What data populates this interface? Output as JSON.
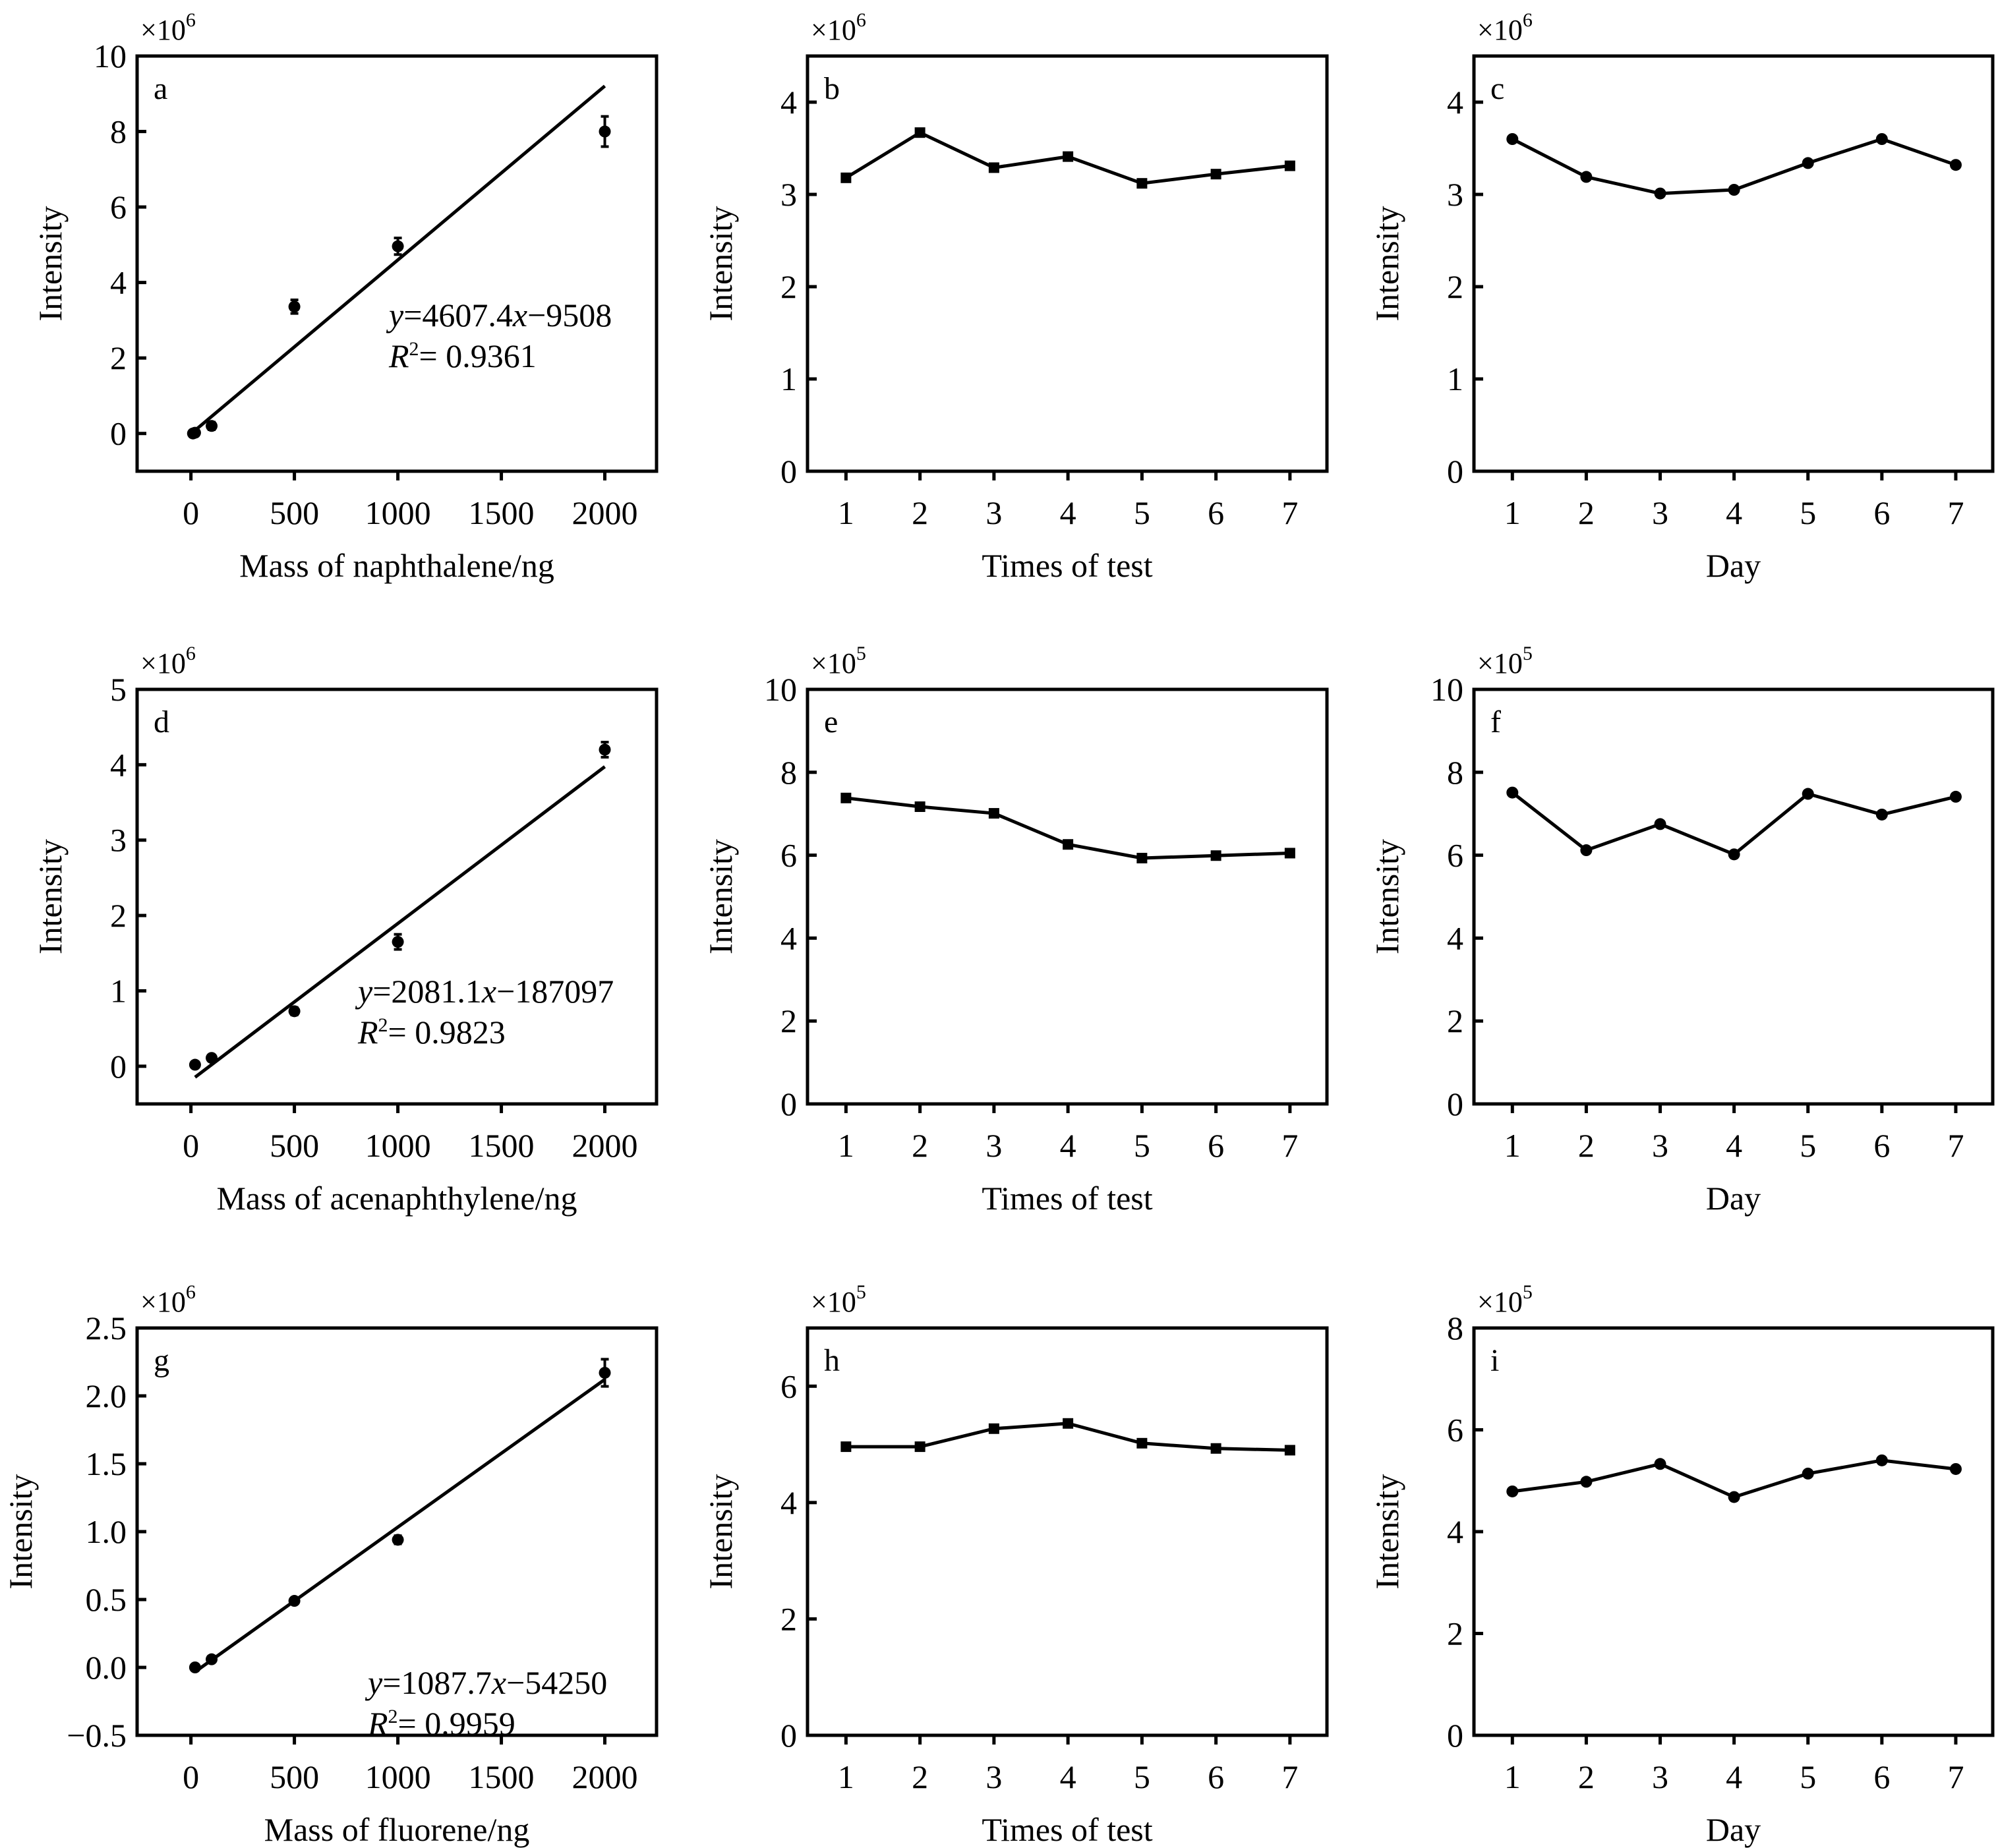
{
  "chart_data": [
    {
      "id": "a",
      "type": "scatter",
      "panel_label": "a",
      "multiplier": {
        "base": "×10",
        "exp": "6"
      },
      "xlabel": "Mass of naphthalene/ng",
      "ylabel": "Intensity",
      "xlim": [
        -260,
        2250
      ],
      "ylim": [
        -1,
        10
      ],
      "xticks": [
        0,
        500,
        1000,
        1500,
        2000
      ],
      "yticks": [
        0,
        2,
        4,
        6,
        8,
        10
      ],
      "marker": "circle",
      "points": [
        {
          "x": 10,
          "y": 0.0,
          "err": 0.05
        },
        {
          "x": 20,
          "y": 0.02,
          "err": 0.05
        },
        {
          "x": 100,
          "y": 0.2,
          "err": 0.1
        },
        {
          "x": 500,
          "y": 3.36,
          "err": 0.18
        },
        {
          "x": 1000,
          "y": 4.96,
          "err": 0.22
        },
        {
          "x": 2000,
          "y": 8.0,
          "err": 0.4
        }
      ],
      "fit": {
        "slope": 4607.4,
        "intercept": -9508,
        "x_range": [
          20,
          2000
        ],
        "scale": 1000000
      },
      "equation": {
        "y_part": "y",
        "mid": "=4607.4",
        "x_part": "x",
        "rest": "−9508",
        "r2_label": "R",
        "r2_sup": "2",
        "r2_value": "= 0.9361"
      }
    },
    {
      "id": "b",
      "type": "line",
      "panel_label": "b",
      "multiplier": {
        "base": "×10",
        "exp": "6"
      },
      "xlabel": "Times of test",
      "ylabel": "Intensity",
      "xlim": [
        0.48,
        7.5
      ],
      "ylim": [
        0,
        4.5
      ],
      "xticks": [
        1,
        2,
        3,
        4,
        5,
        6,
        7
      ],
      "yticks": [
        0,
        1,
        2,
        3,
        4
      ],
      "marker": "square",
      "x": [
        1,
        2,
        3,
        4,
        5,
        6,
        7
      ],
      "values": [
        3.18,
        3.67,
        3.29,
        3.41,
        3.12,
        3.22,
        3.31
      ]
    },
    {
      "id": "c",
      "type": "line",
      "panel_label": "c",
      "multiplier": {
        "base": "×10",
        "exp": "6"
      },
      "xlabel": "Day",
      "ylabel": "Intensity",
      "xlim": [
        0.48,
        7.5
      ],
      "ylim": [
        0,
        4.5
      ],
      "xticks": [
        1,
        2,
        3,
        4,
        5,
        6,
        7
      ],
      "yticks": [
        0,
        1,
        2,
        3,
        4
      ],
      "marker": "circle",
      "x": [
        1,
        2,
        3,
        4,
        5,
        6,
        7
      ],
      "values": [
        3.6,
        3.19,
        3.01,
        3.05,
        3.34,
        3.6,
        3.32
      ]
    },
    {
      "id": "d",
      "type": "scatter",
      "panel_label": "d",
      "multiplier": {
        "base": "×10",
        "exp": "6"
      },
      "xlabel": "Mass of acenaphthylene/ng",
      "ylabel": "Intensity",
      "xlim": [
        -260,
        2250
      ],
      "ylim": [
        -0.5,
        5
      ],
      "xticks": [
        0,
        500,
        1000,
        1500,
        2000
      ],
      "yticks": [
        0,
        1,
        2,
        3,
        4,
        5
      ],
      "marker": "circle",
      "points": [
        {
          "x": 20,
          "y": 0.02,
          "err": 0.04
        },
        {
          "x": 100,
          "y": 0.11,
          "err": 0.04
        },
        {
          "x": 500,
          "y": 0.73,
          "err": 0.05
        },
        {
          "x": 1000,
          "y": 1.65,
          "err": 0.1
        },
        {
          "x": 2000,
          "y": 4.2,
          "err": 0.1
        }
      ],
      "fit": {
        "slope": 2081.1,
        "intercept": -187097,
        "x_range": [
          20,
          2000
        ],
        "scale": 1000000
      },
      "equation": {
        "y_part": "y",
        "mid": "=2081.1",
        "x_part": "x",
        "rest": "−187097",
        "r2_label": "R",
        "r2_sup": "2",
        "r2_value": "= 0.9823"
      }
    },
    {
      "id": "e",
      "type": "line",
      "panel_label": "e",
      "multiplier": {
        "base": "×10",
        "exp": "5"
      },
      "xlabel": "Times of test",
      "ylabel": "Intensity",
      "xlim": [
        0.48,
        7.5
      ],
      "ylim": [
        0,
        10
      ],
      "xticks": [
        1,
        2,
        3,
        4,
        5,
        6,
        7
      ],
      "yticks": [
        0,
        2,
        4,
        6,
        8,
        10
      ],
      "marker": "square",
      "x": [
        1,
        2,
        3,
        4,
        5,
        6,
        7
      ],
      "values": [
        7.38,
        7.17,
        7.01,
        6.26,
        5.93,
        5.99,
        6.05
      ]
    },
    {
      "id": "f",
      "type": "line",
      "panel_label": "f",
      "multiplier": {
        "base": "×10",
        "exp": "5"
      },
      "xlabel": "Day",
      "ylabel": "Intensity",
      "xlim": [
        0.48,
        7.5
      ],
      "ylim": [
        0,
        10
      ],
      "xticks": [
        1,
        2,
        3,
        4,
        5,
        6,
        7
      ],
      "yticks": [
        0,
        2,
        4,
        6,
        8,
        10
      ],
      "marker": "circle",
      "x": [
        1,
        2,
        3,
        4,
        5,
        6,
        7
      ],
      "values": [
        7.51,
        6.12,
        6.75,
        6.02,
        7.48,
        6.98,
        7.41
      ]
    },
    {
      "id": "g",
      "type": "scatter",
      "panel_label": "g",
      "multiplier": {
        "base": "×10",
        "exp": "6"
      },
      "xlabel": "Mass of fluorene/ng",
      "ylabel": "Intensity",
      "xlim": [
        -260,
        2250
      ],
      "ylim": [
        -0.5,
        2.5
      ],
      "xticks": [
        0,
        500,
        1000,
        1500,
        2000
      ],
      "yticks": [
        -0.5,
        0.0,
        0.5,
        1.0,
        1.5,
        2.0,
        2.5
      ],
      "ytick_labels": [
        "−0.5",
        "0.0",
        "0.5",
        "1.0",
        "1.5",
        "2.0",
        "2.5"
      ],
      "marker": "circle",
      "points": [
        {
          "x": 20,
          "y": 0.0,
          "err": 0.02
        },
        {
          "x": 100,
          "y": 0.06,
          "err": 0.02
        },
        {
          "x": 500,
          "y": 0.49,
          "err": 0.02
        },
        {
          "x": 1000,
          "y": 0.94,
          "err": 0.03
        },
        {
          "x": 2000,
          "y": 2.17,
          "err": 0.1
        }
      ],
      "fit": {
        "slope": 1087.7,
        "intercept": -54250,
        "x_range": [
          20,
          2000
        ],
        "scale": 1000000
      },
      "equation": {
        "y_part": "y",
        "mid": "=1087.7",
        "x_part": "x",
        "rest": "−54250",
        "r2_label": "R",
        "r2_sup": "2",
        "r2_value": "= 0.9959"
      }
    },
    {
      "id": "h",
      "type": "line",
      "panel_label": "h",
      "multiplier": {
        "base": "×10",
        "exp": "5"
      },
      "xlabel": "Times of test",
      "ylabel": "Intensity",
      "xlim": [
        0.48,
        7.5
      ],
      "ylim": [
        0,
        7
      ],
      "xticks": [
        1,
        2,
        3,
        4,
        5,
        6,
        7
      ],
      "yticks": [
        0,
        2,
        4,
        6
      ],
      "marker": "square",
      "x": [
        1,
        2,
        3,
        4,
        5,
        6,
        7
      ],
      "values": [
        4.96,
        4.96,
        5.27,
        5.36,
        5.02,
        4.93,
        4.9
      ]
    },
    {
      "id": "i",
      "type": "line",
      "panel_label": "i",
      "multiplier": {
        "base": "×10",
        "exp": "5"
      },
      "xlabel": "Day",
      "ylabel": "Intensity",
      "xlim": [
        0.48,
        7.5
      ],
      "ylim": [
        0,
        8
      ],
      "xticks": [
        1,
        2,
        3,
        4,
        5,
        6,
        7
      ],
      "yticks": [
        0,
        2,
        4,
        6,
        8
      ],
      "marker": "circle",
      "x": [
        1,
        2,
        3,
        4,
        5,
        6,
        7
      ],
      "values": [
        4.79,
        4.98,
        5.33,
        4.68,
        5.14,
        5.4,
        5.23
      ]
    }
  ]
}
